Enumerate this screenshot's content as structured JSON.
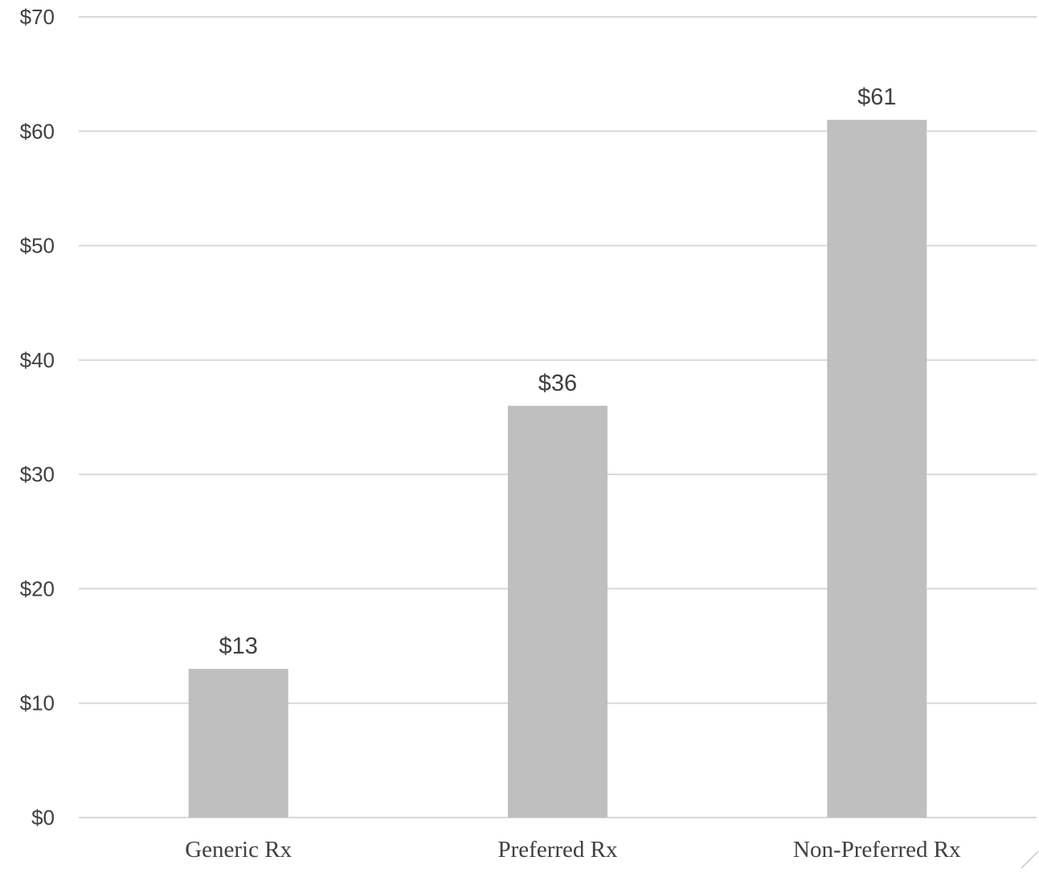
{
  "chart_data": {
    "type": "bar",
    "title": "",
    "xlabel": "",
    "ylabel": "",
    "categories": [
      "Generic Rx",
      "Preferred Rx",
      "Non-Preferred Rx"
    ],
    "values": [
      13,
      36,
      61
    ],
    "data_labels": [
      "$13",
      "$36",
      "$61"
    ],
    "ylim": [
      0,
      70
    ],
    "y_ticks": [
      0,
      10,
      20,
      30,
      40,
      50,
      60,
      70
    ],
    "y_tick_labels": [
      "$0",
      "$10",
      "$20",
      "$30",
      "$40",
      "$50",
      "$60",
      "$70"
    ],
    "grid": true,
    "legend": "none",
    "colors": {
      "bar": "#bfbfbf",
      "grid": "#d9d9d9",
      "text": "#404040"
    }
  }
}
